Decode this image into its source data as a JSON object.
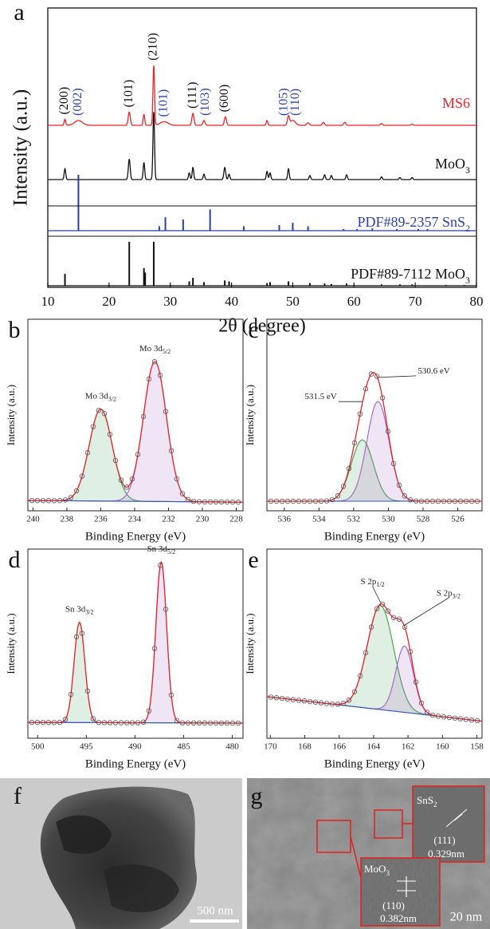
{
  "chart_data": [
    {
      "type": "xrd",
      "panel": "a",
      "xlabel": "2θ (degree)",
      "ylabel": "Intensity (a.u.)",
      "xlim": [
        10,
        80
      ],
      "xticks": [
        10,
        20,
        30,
        40,
        50,
        60,
        70,
        80
      ],
      "series": [
        {
          "name": {
            "base": "MS6"
          },
          "color": "#e8242a",
          "kind": "pattern",
          "x": [
            12.8,
            15.0,
            23.3,
            25.7,
            27.3,
            29.0,
            33.7,
            35.5,
            39.0,
            45.8,
            49.3,
            50.0,
            52.5,
            55.0,
            58.5,
            64.5,
            69.5
          ],
          "values": [
            10,
            8,
            22,
            18,
            100,
            6,
            20,
            8,
            14,
            8,
            14,
            8,
            4,
            5,
            5,
            3,
            2
          ],
          "widths": [
            0.3,
            1.5,
            0.4,
            0.3,
            0.3,
            1.5,
            0.4,
            0.4,
            0.4,
            0.3,
            0.4,
            1.0,
            0.5,
            0.4,
            0.4,
            0.4,
            0.4
          ]
        },
        {
          "name": {
            "base": "MoO",
            "sub": "3"
          },
          "color": "#111111",
          "kind": "pattern",
          "x": [
            12.8,
            23.3,
            25.7,
            27.3,
            33.1,
            33.7,
            35.5,
            38.9,
            39.6,
            45.8,
            46.3,
            49.3,
            52.8,
            55.2,
            56.3,
            58.8,
            64.5,
            67.5,
            69.5
          ],
          "values": [
            16,
            30,
            25,
            100,
            10,
            18,
            8,
            18,
            8,
            12,
            10,
            16,
            6,
            7,
            6,
            7,
            4,
            3,
            3
          ],
          "widths": [
            0.3,
            0.35,
            0.3,
            0.3,
            0.3,
            0.3,
            0.3,
            0.35,
            0.3,
            0.3,
            0.3,
            0.3,
            0.3,
            0.3,
            0.3,
            0.3,
            0.3,
            0.3,
            0.3
          ]
        },
        {
          "name": {
            "base": "PDF#89-2357 SnS",
            "sub": "2"
          },
          "color": "#2b3fa6",
          "kind": "sticks",
          "x": [
            15.0,
            28.2,
            29.2,
            32.1,
            36.5,
            42.0,
            47.8,
            50.0,
            52.5,
            58.3,
            60.5,
            63.0,
            67.0,
            70.5,
            72.0
          ],
          "values": [
            100,
            8,
            24,
            20,
            38,
            8,
            10,
            14,
            8,
            3,
            3,
            4,
            3,
            3,
            3
          ]
        },
        {
          "name": {
            "base": "PDF#89-7112 MoO",
            "sub": "3"
          },
          "color": "#111111",
          "kind": "sticks",
          "x": [
            12.8,
            23.3,
            25.7,
            25.9,
            27.3,
            33.1,
            33.7,
            35.5,
            38.9,
            39.6,
            45.8,
            46.3,
            49.3,
            52.8,
            55.2,
            56.3,
            58.8,
            64.5,
            67.5,
            69.5,
            75.0,
            78.0
          ],
          "values": [
            27,
            100,
            40,
            30,
            100,
            10,
            18,
            8,
            12,
            10,
            6,
            8,
            10,
            6,
            5,
            4,
            5,
            3,
            3,
            3,
            2,
            2
          ]
        }
      ],
      "peak_labels": [
        {
          "label": "(200)",
          "x": 12.8,
          "color": "#111111"
        },
        {
          "label": "(002)",
          "x": 15.0,
          "color": "#2b3fa6"
        },
        {
          "label": "(101)",
          "x": 23.3,
          "color": "#111111"
        },
        {
          "label": "(210)",
          "x": 27.3,
          "color": "#111111"
        },
        {
          "label": "(101)",
          "x": 29.0,
          "color": "#2b3fa6"
        },
        {
          "label": "(111)",
          "x": 33.7,
          "color": "#111111"
        },
        {
          "label": "(103)",
          "x": 35.8,
          "color": "#2b3fa6"
        },
        {
          "label": "(600)",
          "x": 38.9,
          "color": "#111111"
        },
        {
          "label": "(105)",
          "x": 48.6,
          "color": "#2b3fa6"
        },
        {
          "label": "(110)",
          "x": 50.5,
          "color": "#2b3fa6"
        }
      ]
    },
    {
      "type": "xps",
      "panel": "b",
      "xlabel": "Binding Energy (eV)",
      "ylabel": "Intensity (a.u.)",
      "xlim": [
        240.3,
        227.6
      ],
      "xticks": [
        240,
        238,
        236,
        234,
        232,
        230,
        228
      ],
      "ylim": [
        0,
        100
      ],
      "background": [
        5.4,
        4.5
      ],
      "components": [
        {
          "label": {
            "base": "Mo 3d",
            "sub": "3/2"
          },
          "color": "#3f9d4f",
          "center": 236.0,
          "height": 48,
          "fwhm": 1.6
        },
        {
          "label": {
            "base": "Mo 3d",
            "sub": "5/2"
          },
          "color": "#a060c0",
          "center": 232.8,
          "height": 73,
          "fwhm": 1.6
        }
      ]
    },
    {
      "type": "xps",
      "panel": "c",
      "xlabel": "Binding Energy (eV)",
      "ylabel": "Intensity (a.u.)",
      "xlim": [
        537.0,
        524.6
      ],
      "xticks": [
        536,
        534,
        532,
        530,
        528,
        526
      ],
      "ylim": [
        0,
        100
      ],
      "background": [
        5,
        5
      ],
      "components": [
        {
          "label": {
            "base": "531.5 eV"
          },
          "color": "#3f9d4f",
          "center": 531.5,
          "height": 32,
          "fwhm": 1.5
        },
        {
          "label": {
            "base": "530.6 eV"
          },
          "color": "#a060c0",
          "center": 530.6,
          "height": 52,
          "fwhm": 1.5
        }
      ]
    },
    {
      "type": "xps",
      "panel": "d",
      "xlabel": "Binding Energy (eV)",
      "ylabel": "Intensity (a.u.)",
      "xlim": [
        501.0,
        478.9
      ],
      "xticks": [
        500,
        495,
        490,
        485,
        480
      ],
      "ylim": [
        0,
        100
      ],
      "background": [
        8.4,
        8
      ],
      "components": [
        {
          "label": {
            "base": "Sn 3d",
            "sub": "3/2"
          },
          "color": "#3f9d4f",
          "center": 495.7,
          "height": 53,
          "fwhm": 1.3
        },
        {
          "label": {
            "base": "Sn 3d",
            "sub": "5/2"
          },
          "color": "#a060c0",
          "center": 487.3,
          "height": 85,
          "fwhm": 1.3
        }
      ]
    },
    {
      "type": "xps",
      "panel": "e",
      "xlabel": "Binding Energy (eV)",
      "ylabel": "Intensity (a.u.)",
      "xlim": [
        170.2,
        157.7
      ],
      "xticks": [
        170,
        168,
        166,
        164,
        162,
        160,
        158
      ],
      "ylim": [
        0,
        100
      ],
      "background": [
        22,
        9
      ],
      "components": [
        {
          "label": {
            "base": "S 2p",
            "sub": "1/2"
          },
          "color": "#3f9d4f",
          "center": 163.6,
          "height": 55,
          "fwhm": 1.8
        },
        {
          "label": {
            "base": "S 2p",
            "sub": "3/2"
          },
          "color": "#a060c0",
          "center": 162.2,
          "height": 35,
          "fwhm": 1.2
        }
      ]
    }
  ],
  "images": [
    {
      "panel": "f",
      "scale_bar": "500 nm"
    },
    {
      "panel": "g",
      "scale_bar": "20 nm",
      "insets": [
        {
          "phase": {
            "base": "SnS",
            "sub": "2"
          },
          "plane": "(111)",
          "spacing": "0.329nm"
        },
        {
          "phase": {
            "base": "MoO",
            "sub": "3"
          },
          "plane": "(110)",
          "spacing": "0.382nm"
        }
      ]
    }
  ]
}
